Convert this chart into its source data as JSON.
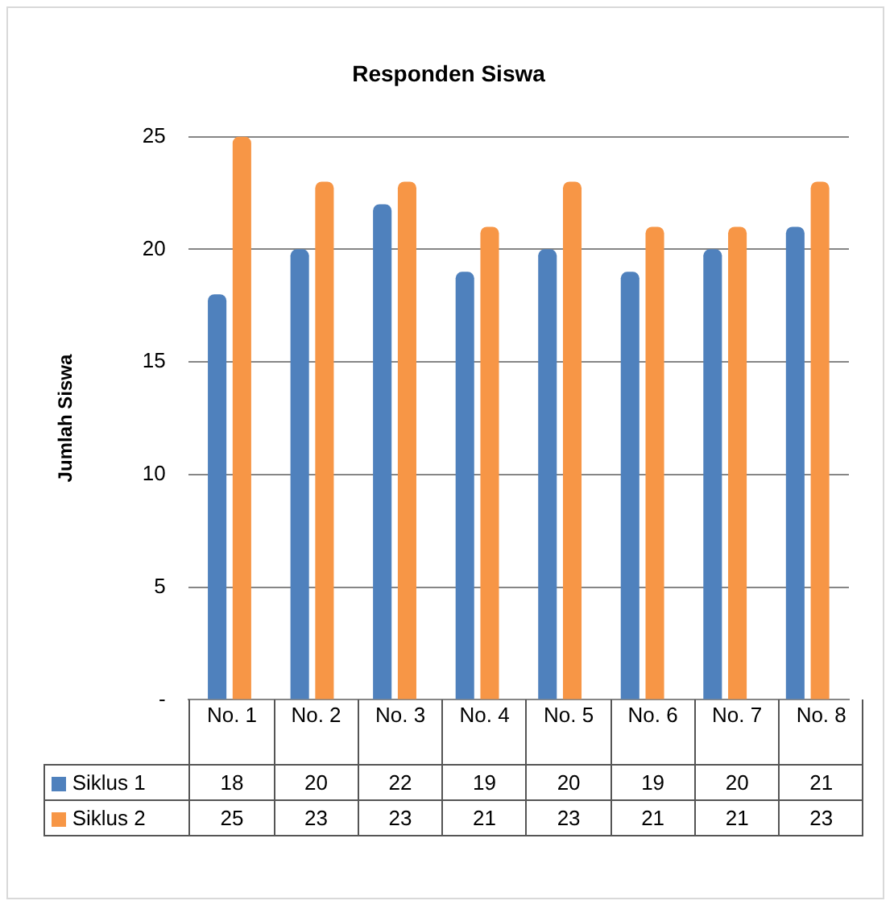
{
  "chart_data": {
    "type": "bar",
    "title": "Responden Siswa",
    "ylabel": "Jumlah Siswa",
    "categories": [
      "No. 1",
      "No. 2",
      "No. 3",
      "No. 4",
      "No. 5",
      "No. 6",
      "No. 7",
      "No. 8"
    ],
    "series": [
      {
        "name": "Siklus 1",
        "color": "#4f81bd",
        "values": [
          18,
          20,
          22,
          19,
          20,
          19,
          20,
          21
        ]
      },
      {
        "name": "Siklus 2",
        "color": "#f79646",
        "values": [
          25,
          23,
          23,
          21,
          23,
          21,
          21,
          23
        ]
      }
    ],
    "ylim": [
      0,
      25
    ],
    "yticks": [
      {
        "value": 0,
        "label": "-"
      },
      5,
      10,
      15,
      20,
      25
    ],
    "grid": "y",
    "legend": "bottom",
    "data_labels": true
  }
}
